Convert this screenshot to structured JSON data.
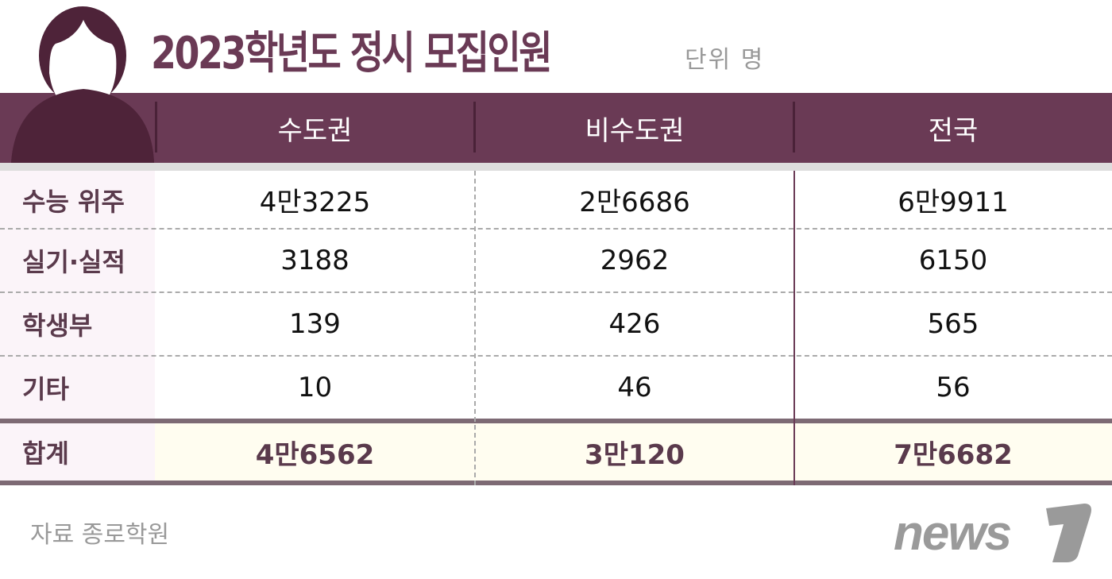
{
  "title": "2023학년도 정시 모집인원",
  "unit": "단위 명",
  "colors": {
    "header": "#6a3a55",
    "label_bg": "#fbf4f9",
    "total_bg": "#fffdf0",
    "logo": "#9a9a9a"
  },
  "columns": [
    "수도권",
    "비수도권",
    "전국"
  ],
  "rows": [
    {
      "label": "수능 위주",
      "values": [
        "4만3225",
        "2만6686",
        "6만9911"
      ]
    },
    {
      "label": "실기·실적",
      "values": [
        "3188",
        "2962",
        "6150"
      ]
    },
    {
      "label": "학생부",
      "values": [
        "139",
        "426",
        "565"
      ]
    },
    {
      "label": "기타",
      "values": [
        "10",
        "46",
        "56"
      ]
    }
  ],
  "total": {
    "label": "합계",
    "values": [
      "4만6562",
      "3만120",
      "7만6682"
    ]
  },
  "source": "자료 종로학원",
  "logo": "news1",
  "icon": "person-avatar-icon"
}
